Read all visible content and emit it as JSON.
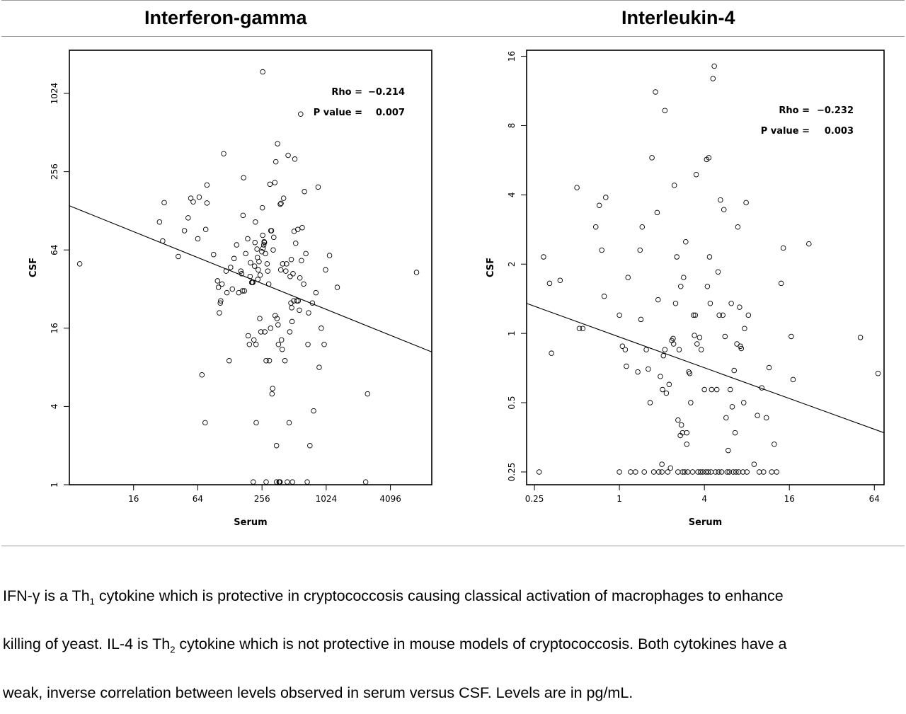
{
  "titles": [
    "Interferon-gamma",
    "Interleukin-4"
  ],
  "caption": {
    "line1_a": "IFN-γ is a Th",
    "line1_sub": "1",
    "line1_b": " cytokine which is protective in cryptococcosis causing classical activation of macrophages to enhance",
    "line2_a": "killing of yeast. IL-4 is Th",
    "line2_sub": "2",
    "line2_b": " cytokine which is not protective in mouse models of cryptococcosis. Both cytokines have a",
    "line3": "weak, inverse correlation between levels observed in serum versus CSF. Levels are in pg/mL."
  },
  "chart_data": [
    {
      "type": "scatter",
      "title": "Interferon-gamma",
      "xlabel": "Serum",
      "ylabel": "CSF",
      "xscale": "log2",
      "yscale": "log2",
      "xlim": [
        4,
        10000
      ],
      "ylim": [
        1,
        2200
      ],
      "xticks": [
        16,
        64,
        256,
        1024,
        4096
      ],
      "xticklabels": [
        "16",
        "64",
        "256",
        "1024",
        "4096"
      ],
      "yticks": [
        1,
        4,
        16,
        64,
        256,
        1024
      ],
      "yticklabels": [
        "1",
        "4",
        "16",
        "64",
        "256",
        "1024"
      ],
      "annotations": [
        {
          "label": "Rho = ",
          "value": "−0.214"
        },
        {
          "label": "P value = ",
          "value": "0.007"
        }
      ],
      "regression_line": {
        "x": [
          4,
          10000
        ],
        "y": [
          140,
          10.5
        ]
      },
      "grid": false,
      "points": [
        [
          5,
          50
        ],
        [
          28,
          105
        ],
        [
          30,
          75
        ],
        [
          31,
          148
        ],
        [
          42,
          57
        ],
        [
          48,
          90
        ],
        [
          52,
          113
        ],
        [
          55,
          160
        ],
        [
          58,
          150
        ],
        [
          64,
          78
        ],
        [
          66,
          163
        ],
        [
          70,
          7
        ],
        [
          75,
          3
        ],
        [
          76,
          92
        ],
        [
          78,
          147
        ],
        [
          78,
          202
        ],
        [
          90,
          59
        ],
        [
          98,
          37
        ],
        [
          100,
          33
        ],
        [
          102,
          21
        ],
        [
          104,
          25
        ],
        [
          105,
          26
        ],
        [
          108,
          35
        ],
        [
          112,
          352
        ],
        [
          118,
          44
        ],
        [
          120,
          30
        ],
        [
          126,
          9
        ],
        [
          130,
          47
        ],
        [
          135,
          32
        ],
        [
          140,
          55
        ],
        [
          148,
          70
        ],
        [
          155,
          30
        ],
        [
          162,
          44
        ],
        [
          165,
          42
        ],
        [
          168,
          31
        ],
        [
          170,
          118
        ],
        [
          172,
          230
        ],
        [
          175,
          31
        ],
        [
          180,
          60
        ],
        [
          188,
          78
        ],
        [
          190,
          14
        ],
        [
          195,
          12
        ],
        [
          198,
          40
        ],
        [
          200,
          51
        ],
        [
          205,
          36
        ],
        [
          208,
          36
        ],
        [
          210,
          36
        ],
        [
          212,
          1.05
        ],
        [
          215,
          13
        ],
        [
          218,
          48
        ],
        [
          220,
          73
        ],
        [
          222,
          105
        ],
        [
          225,
          12
        ],
        [
          226,
          3
        ],
        [
          230,
          65
        ],
        [
          232,
          56
        ],
        [
          234,
          38
        ],
        [
          236,
          45
        ],
        [
          240,
          52
        ],
        [
          244,
          19
        ],
        [
          246,
          41
        ],
        [
          250,
          15
        ],
        [
          255,
          62
        ],
        [
          258,
          135
        ],
        [
          260,
          83
        ],
        [
          262,
          66
        ],
        [
          266,
          70
        ],
        [
          268,
          74
        ],
        [
          270,
          73
        ],
        [
          272,
          15
        ],
        [
          276,
          60
        ],
        [
          280,
          9
        ],
        [
          286,
          50
        ],
        [
          290,
          44
        ],
        [
          296,
          35
        ],
        [
          300,
          9
        ],
        [
          304,
          205
        ],
        [
          308,
          16
        ],
        [
          310,
          90
        ],
        [
          314,
          90
        ],
        [
          318,
          5
        ],
        [
          322,
          5.5
        ],
        [
          326,
          64
        ],
        [
          330,
          80
        ],
        [
          338,
          211
        ],
        [
          340,
          20
        ],
        [
          345,
          305
        ],
        [
          350,
          2
        ],
        [
          354,
          19
        ],
        [
          358,
          420
        ],
        [
          362,
          17
        ],
        [
          365,
          12
        ],
        [
          370,
          1.05
        ],
        [
          375,
          1.05
        ],
        [
          378,
          1.05
        ],
        [
          380,
          144
        ],
        [
          384,
          45
        ],
        [
          386,
          146
        ],
        [
          390,
          13
        ],
        [
          396,
          11
        ],
        [
          400,
          50
        ],
        [
          408,
          160
        ],
        [
          420,
          9
        ],
        [
          428,
          44
        ],
        [
          435,
          50
        ],
        [
          442,
          1.05
        ],
        [
          450,
          342
        ],
        [
          460,
          3
        ],
        [
          466,
          15
        ],
        [
          470,
          40
        ],
        [
          478,
          25
        ],
        [
          482,
          54
        ],
        [
          486,
          23
        ],
        [
          490,
          18
        ],
        [
          494,
          1.05
        ],
        [
          500,
          42
        ],
        [
          508,
          26
        ],
        [
          512,
          89
        ],
        [
          520,
          320
        ],
        [
          530,
          72
        ],
        [
          544,
          26
        ],
        [
          554,
          92
        ],
        [
          560,
          26
        ],
        [
          574,
          22
        ],
        [
          580,
          39
        ],
        [
          590,
          710
        ],
        [
          600,
          53
        ],
        [
          610,
          95
        ],
        [
          630,
          35
        ],
        [
          640,
          180
        ],
        [
          660,
          60
        ],
        [
          680,
          1.05
        ],
        [
          690,
          12
        ],
        [
          700,
          21
        ],
        [
          720,
          2
        ],
        [
          760,
          25
        ],
        [
          780,
          3.7
        ],
        [
          820,
          30
        ],
        [
          860,
          195
        ],
        [
          880,
          8
        ],
        [
          920,
          16
        ],
        [
          980,
          12
        ],
        [
          1010,
          45
        ],
        [
          1100,
          58
        ],
        [
          1300,
          33
        ],
        [
          2400,
          1.05
        ],
        [
          2500,
          5
        ],
        [
          7200,
          43
        ],
        [
          280,
          1.05
        ],
        [
          260,
          1500
        ],
        [
          350,
          1.05
        ]
      ]
    },
    {
      "type": "scatter",
      "title": "Interleukin-4",
      "xlabel": "Serum",
      "ylabel": "CSF",
      "xscale": "log2",
      "yscale": "log2",
      "xlim": [
        0.22,
        75
      ],
      "ylim": [
        0.22,
        17
      ],
      "xticks": [
        0.25,
        1,
        4,
        16,
        64
      ],
      "xticklabels": [
        "0.25",
        "1",
        "4",
        "16",
        "64"
      ],
      "yticks": [
        0.25,
        0.5,
        1,
        2,
        4,
        8,
        16
      ],
      "yticklabels": [
        "0.25",
        "0.5",
        "1",
        "2",
        "4",
        "8",
        "16"
      ],
      "annotations": [
        {
          "label": "Rho = ",
          "value": "−0.232"
        },
        {
          "label": "P value = ",
          "value": "0.003"
        }
      ],
      "regression_line": {
        "x": [
          0.22,
          75
        ],
        "y": [
          1.35,
          0.37
        ]
      },
      "grid": false,
      "points": [
        [
          0.27,
          0.25
        ],
        [
          0.29,
          2.15
        ],
        [
          0.32,
          1.65
        ],
        [
          0.33,
          0.82
        ],
        [
          0.38,
          1.7
        ],
        [
          0.5,
          4.3
        ],
        [
          0.52,
          1.05
        ],
        [
          0.55,
          1.05
        ],
        [
          0.68,
          2.9
        ],
        [
          0.72,
          3.6
        ],
        [
          0.75,
          2.3
        ],
        [
          0.8,
          3.9
        ],
        [
          0.78,
          1.45
        ],
        [
          1.0,
          0.25
        ],
        [
          1.0,
          1.2
        ],
        [
          1.05,
          0.88
        ],
        [
          1.1,
          0.85
        ],
        [
          1.12,
          0.72
        ],
        [
          1.15,
          1.75
        ],
        [
          1.2,
          0.25
        ],
        [
          1.3,
          0.25
        ],
        [
          1.35,
          0.68
        ],
        [
          1.4,
          2.3
        ],
        [
          1.42,
          1.15
        ],
        [
          1.45,
          2.9
        ],
        [
          1.5,
          0.25
        ],
        [
          1.55,
          0.85
        ],
        [
          1.6,
          0.7
        ],
        [
          1.65,
          0.5
        ],
        [
          1.7,
          5.8
        ],
        [
          1.75,
          0.25
        ],
        [
          1.8,
          11.2
        ],
        [
          1.85,
          3.35
        ],
        [
          1.88,
          1.4
        ],
        [
          1.9,
          0.25
        ],
        [
          1.95,
          0.65
        ],
        [
          2.0,
          0.25
        ],
        [
          2.0,
          0.27
        ],
        [
          2.02,
          0.57
        ],
        [
          2.05,
          0.8
        ],
        [
          2.1,
          9.3
        ],
        [
          2.1,
          0.85
        ],
        [
          2.15,
          0.55
        ],
        [
          2.2,
          0.25
        ],
        [
          2.25,
          0.6
        ],
        [
          2.3,
          0.26
        ],
        [
          2.35,
          0.93
        ],
        [
          2.4,
          0.95
        ],
        [
          2.42,
          0.9
        ],
        [
          2.45,
          4.4
        ],
        [
          2.5,
          1.35
        ],
        [
          2.55,
          2.15
        ],
        [
          2.6,
          0.42
        ],
        [
          2.6,
          0.25
        ],
        [
          2.65,
          0.85
        ],
        [
          2.7,
          0.36
        ],
        [
          2.72,
          1.6
        ],
        [
          2.75,
          0.4
        ],
        [
          2.8,
          0.37
        ],
        [
          2.8,
          0.25
        ],
        [
          2.85,
          1.75
        ],
        [
          2.9,
          0.25
        ],
        [
          2.95,
          2.5
        ],
        [
          3.0,
          0.37
        ],
        [
          3.0,
          0.33
        ],
        [
          3.05,
          0.25
        ],
        [
          3.1,
          0.68
        ],
        [
          3.15,
          0.67
        ],
        [
          3.2,
          0.5
        ],
        [
          3.3,
          0.25
        ],
        [
          3.35,
          1.2
        ],
        [
          3.4,
          0.98
        ],
        [
          3.45,
          1.2
        ],
        [
          3.5,
          4.9
        ],
        [
          3.55,
          0.9
        ],
        [
          3.6,
          0.25
        ],
        [
          3.7,
          0.96
        ],
        [
          3.75,
          0.25
        ],
        [
          3.8,
          0.85
        ],
        [
          3.9,
          0.25
        ],
        [
          4.0,
          0.57
        ],
        [
          4.1,
          0.25
        ],
        [
          4.15,
          5.7
        ],
        [
          4.2,
          1.6
        ],
        [
          4.25,
          0.25
        ],
        [
          4.3,
          5.8
        ],
        [
          4.35,
          2.15
        ],
        [
          4.4,
          1.35
        ],
        [
          4.45,
          0.25
        ],
        [
          4.5,
          0.57
        ],
        [
          4.6,
          12.8
        ],
        [
          4.7,
          14.5
        ],
        [
          4.8,
          0.25
        ],
        [
          4.9,
          0.57
        ],
        [
          5.0,
          1.85
        ],
        [
          5.05,
          0.25
        ],
        [
          5.1,
          1.2
        ],
        [
          5.2,
          3.8
        ],
        [
          5.3,
          0.25
        ],
        [
          5.4,
          1.2
        ],
        [
          5.5,
          3.45
        ],
        [
          5.6,
          0.97
        ],
        [
          5.7,
          0.43
        ],
        [
          5.8,
          0.25
        ],
        [
          5.9,
          0.31
        ],
        [
          6.0,
          0.25
        ],
        [
          6.1,
          0.57
        ],
        [
          6.2,
          1.35
        ],
        [
          6.3,
          0.48
        ],
        [
          6.4,
          0.25
        ],
        [
          6.5,
          0.69
        ],
        [
          6.6,
          0.37
        ],
        [
          6.7,
          0.25
        ],
        [
          6.8,
          0.9
        ],
        [
          6.9,
          2.9
        ],
        [
          7.0,
          0.25
        ],
        [
          7.1,
          1.3
        ],
        [
          7.2,
          0.88
        ],
        [
          7.3,
          0.86
        ],
        [
          7.5,
          0.25
        ],
        [
          7.6,
          0.5
        ],
        [
          7.7,
          1.05
        ],
        [
          7.9,
          3.7
        ],
        [
          8.0,
          0.25
        ],
        [
          8.2,
          1.2
        ],
        [
          9.0,
          0.27
        ],
        [
          9.5,
          0.44
        ],
        [
          9.8,
          0.25
        ],
        [
          10.2,
          0.58
        ],
        [
          10.5,
          0.25
        ],
        [
          11.0,
          0.43
        ],
        [
          11.5,
          0.71
        ],
        [
          12.0,
          0.25
        ],
        [
          12.5,
          0.33
        ],
        [
          13.0,
          0.25
        ],
        [
          14.0,
          1.65
        ],
        [
          14.5,
          2.35
        ],
        [
          16.5,
          0.97
        ],
        [
          17.0,
          0.63
        ],
        [
          22.0,
          2.45
        ],
        [
          51.0,
          0.96
        ],
        [
          68.0,
          0.67
        ]
      ]
    }
  ]
}
